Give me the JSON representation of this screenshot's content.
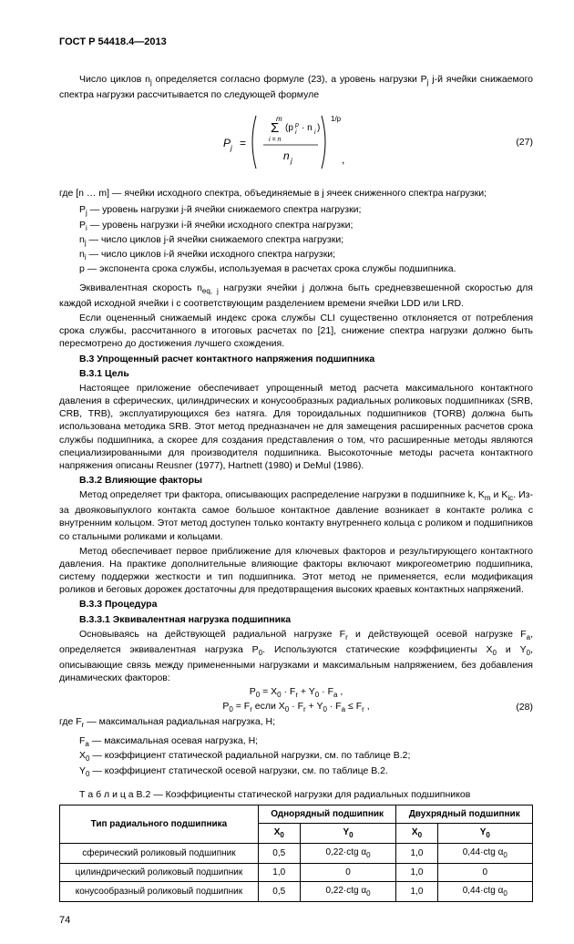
{
  "header": "ГОСТ Р 54418.4—2013",
  "intro": "Число циклов n<sub>j</sub> определяется согласно формуле (23), а уровень нагрузки P<sub>j</sub>  j-й ячейки снижаемого спектра нагрузки рассчитывается по следующей формуле",
  "formula27_num": "(27)",
  "defs_pre": "где [n … m] — ячейки исходного спектра, объединяемые в j ячеек сниженного спектра нагрузки;",
  "defs": [
    "P<sub>j</sub>  — уровень нагрузки j-й ячейки снижаемого спектра нагрузки;",
    "P<sub>i</sub>  — уровень нагрузки i-й ячейки исходного спектра нагрузки;",
    "n<sub>j</sub>  — число циклов j-й ячейки снижаемого спектра нагрузки;",
    "n<sub>i</sub>  — число циклов i-й ячейки исходного спектра нагрузки;",
    "p   — экспонента срока службы, используемая в расчетах срока службы подшипника."
  ],
  "para_eq": "Эквивалентная скорость n<sub>eq, j</sub> нагрузки ячейки j должна быть средневзвешенной скоростью для каждой исходной ячейки i с соответствующим разделением времени ячейки LDD или LRD.",
  "para_cli": "Если оцененный снижаемый индекс срока службы CLI существенно отклоняется от потребления срока службы, рассчитанного в итоговых расчетах по [21], снижение спектра нагрузки должно быть пересмотрено до достижения лучшего схождения.",
  "b3_title": "B.3 Упрощенный расчет контактного напряжения подшипника",
  "b31_title": "B.3.1 Цель",
  "b31_text": "Настоящее приложение обеспечивает упрощенный метод расчета максимального контактного давления в сферических, цилиндрических и конусообразных радиальных роликовых подшипниках (SRB, CRB, TRB), эксплуатирующихся без натяга. Для тороидальных подшипников (TORB) должна быть использована методика SRB. Этот метод предназначен не для замещения расширенных расчетов срока службы подшипника, а скорее для создания представления о том, что расширенные методы являются специализированными для производителя подшипника. Высокоточные методы расчета контактного напряжения описаны Reusner (1977), Hartnett (1980) и DeMul (1986).",
  "b32_title": "B.3.2 Влияющие факторы",
  "b32_p1": "Метод определяет три фактора, описывающих распределение нагрузки в подшипнике k, K<sub>m</sub> и K<sub>ic</sub>. Из-за двояковыпуклого контакта самое большое контактное давление возникает в контакте ролика с внутренним кольцом. Этот метод доступен только контакту внутреннего кольца с роликом и подшипников со стальными роликами и кольцами.",
  "b32_p2": "Метод обеспечивает первое приближение для ключевых факторов и результирующего контактного давления. На практике дополнительные влияющие факторы включают микрогеометрию подшипника, систему поддержки жесткости и тип подшипника. Этот метод не применяется, если модификация роликов и беговых дорожек достаточны для предотвращения высоких краевых контактных напряжений.",
  "b33_title": "B.3.3 Процедура",
  "b331_title": "B.3.3.1 Эквивалентная нагрузка подшипника",
  "b331_text": "Основываясь на действующей радиальной нагрузке F<sub>r</sub> и действующей осевой нагрузке F<sub>a</sub>, определяется эквивалентная нагрузка P<sub>0</sub>. Используются статические коэффициенты X<sub>0</sub> и Y<sub>0</sub>, описывающие связь между примененными нагрузками и максимальным напряжением, без добавления динамических факторов:",
  "eq28a": "P<sub>0</sub> = X<sub>0</sub> · F<sub>r</sub> + Y<sub>0</sub>  · F<sub>a</sub> ,",
  "eq28b": "P<sub>0</sub> = F<sub>r</sub>  если X<sub>0</sub> · F<sub>r</sub> + Y<sub>0</sub> · F<sub>a</sub> ≤ F<sub>r</sub> ,",
  "eq28_num": "(28)",
  "defs2_pre": "где F<sub>r</sub>   — максимальная радиальная нагрузка, H;",
  "defs2": [
    "F<sub>a</sub>   — максимальная осевая нагрузка, H;",
    "X<sub>0</sub>  — коэффициент статической радиальной нагрузки, см. по таблице В.2;",
    "Y<sub>0</sub>  — коэффициент статической осевой нагрузки, см. по таблице В.2."
  ],
  "table_caption": "Т а б л и ц а   В.2 — Коэффициенты статической нагрузки для радиальных подшипников",
  "table": {
    "head_type": "Тип радиального подшипника",
    "head_single": "Однорядный подшипник",
    "head_double": "Двухрядный подшипник",
    "sub_x": "X<sub>0</sub>",
    "sub_y": "Y<sub>0</sub>",
    "rows": [
      [
        "сферический роликовый подшипник",
        "0,5",
        "0,22·ctg α<sub>0</sub>",
        "1,0",
        "0,44·ctg α<sub>0</sub>"
      ],
      [
        "цилиндрический роликовый подшипник",
        "1,0",
        "0",
        "1,0",
        "0"
      ],
      [
        "конусообразный роликовый подшипник",
        "0,5",
        "0,22·ctg α<sub>0</sub>",
        "1,0",
        "0,44·ctg α<sub>0</sub>"
      ]
    ]
  },
  "pagenum": "74"
}
